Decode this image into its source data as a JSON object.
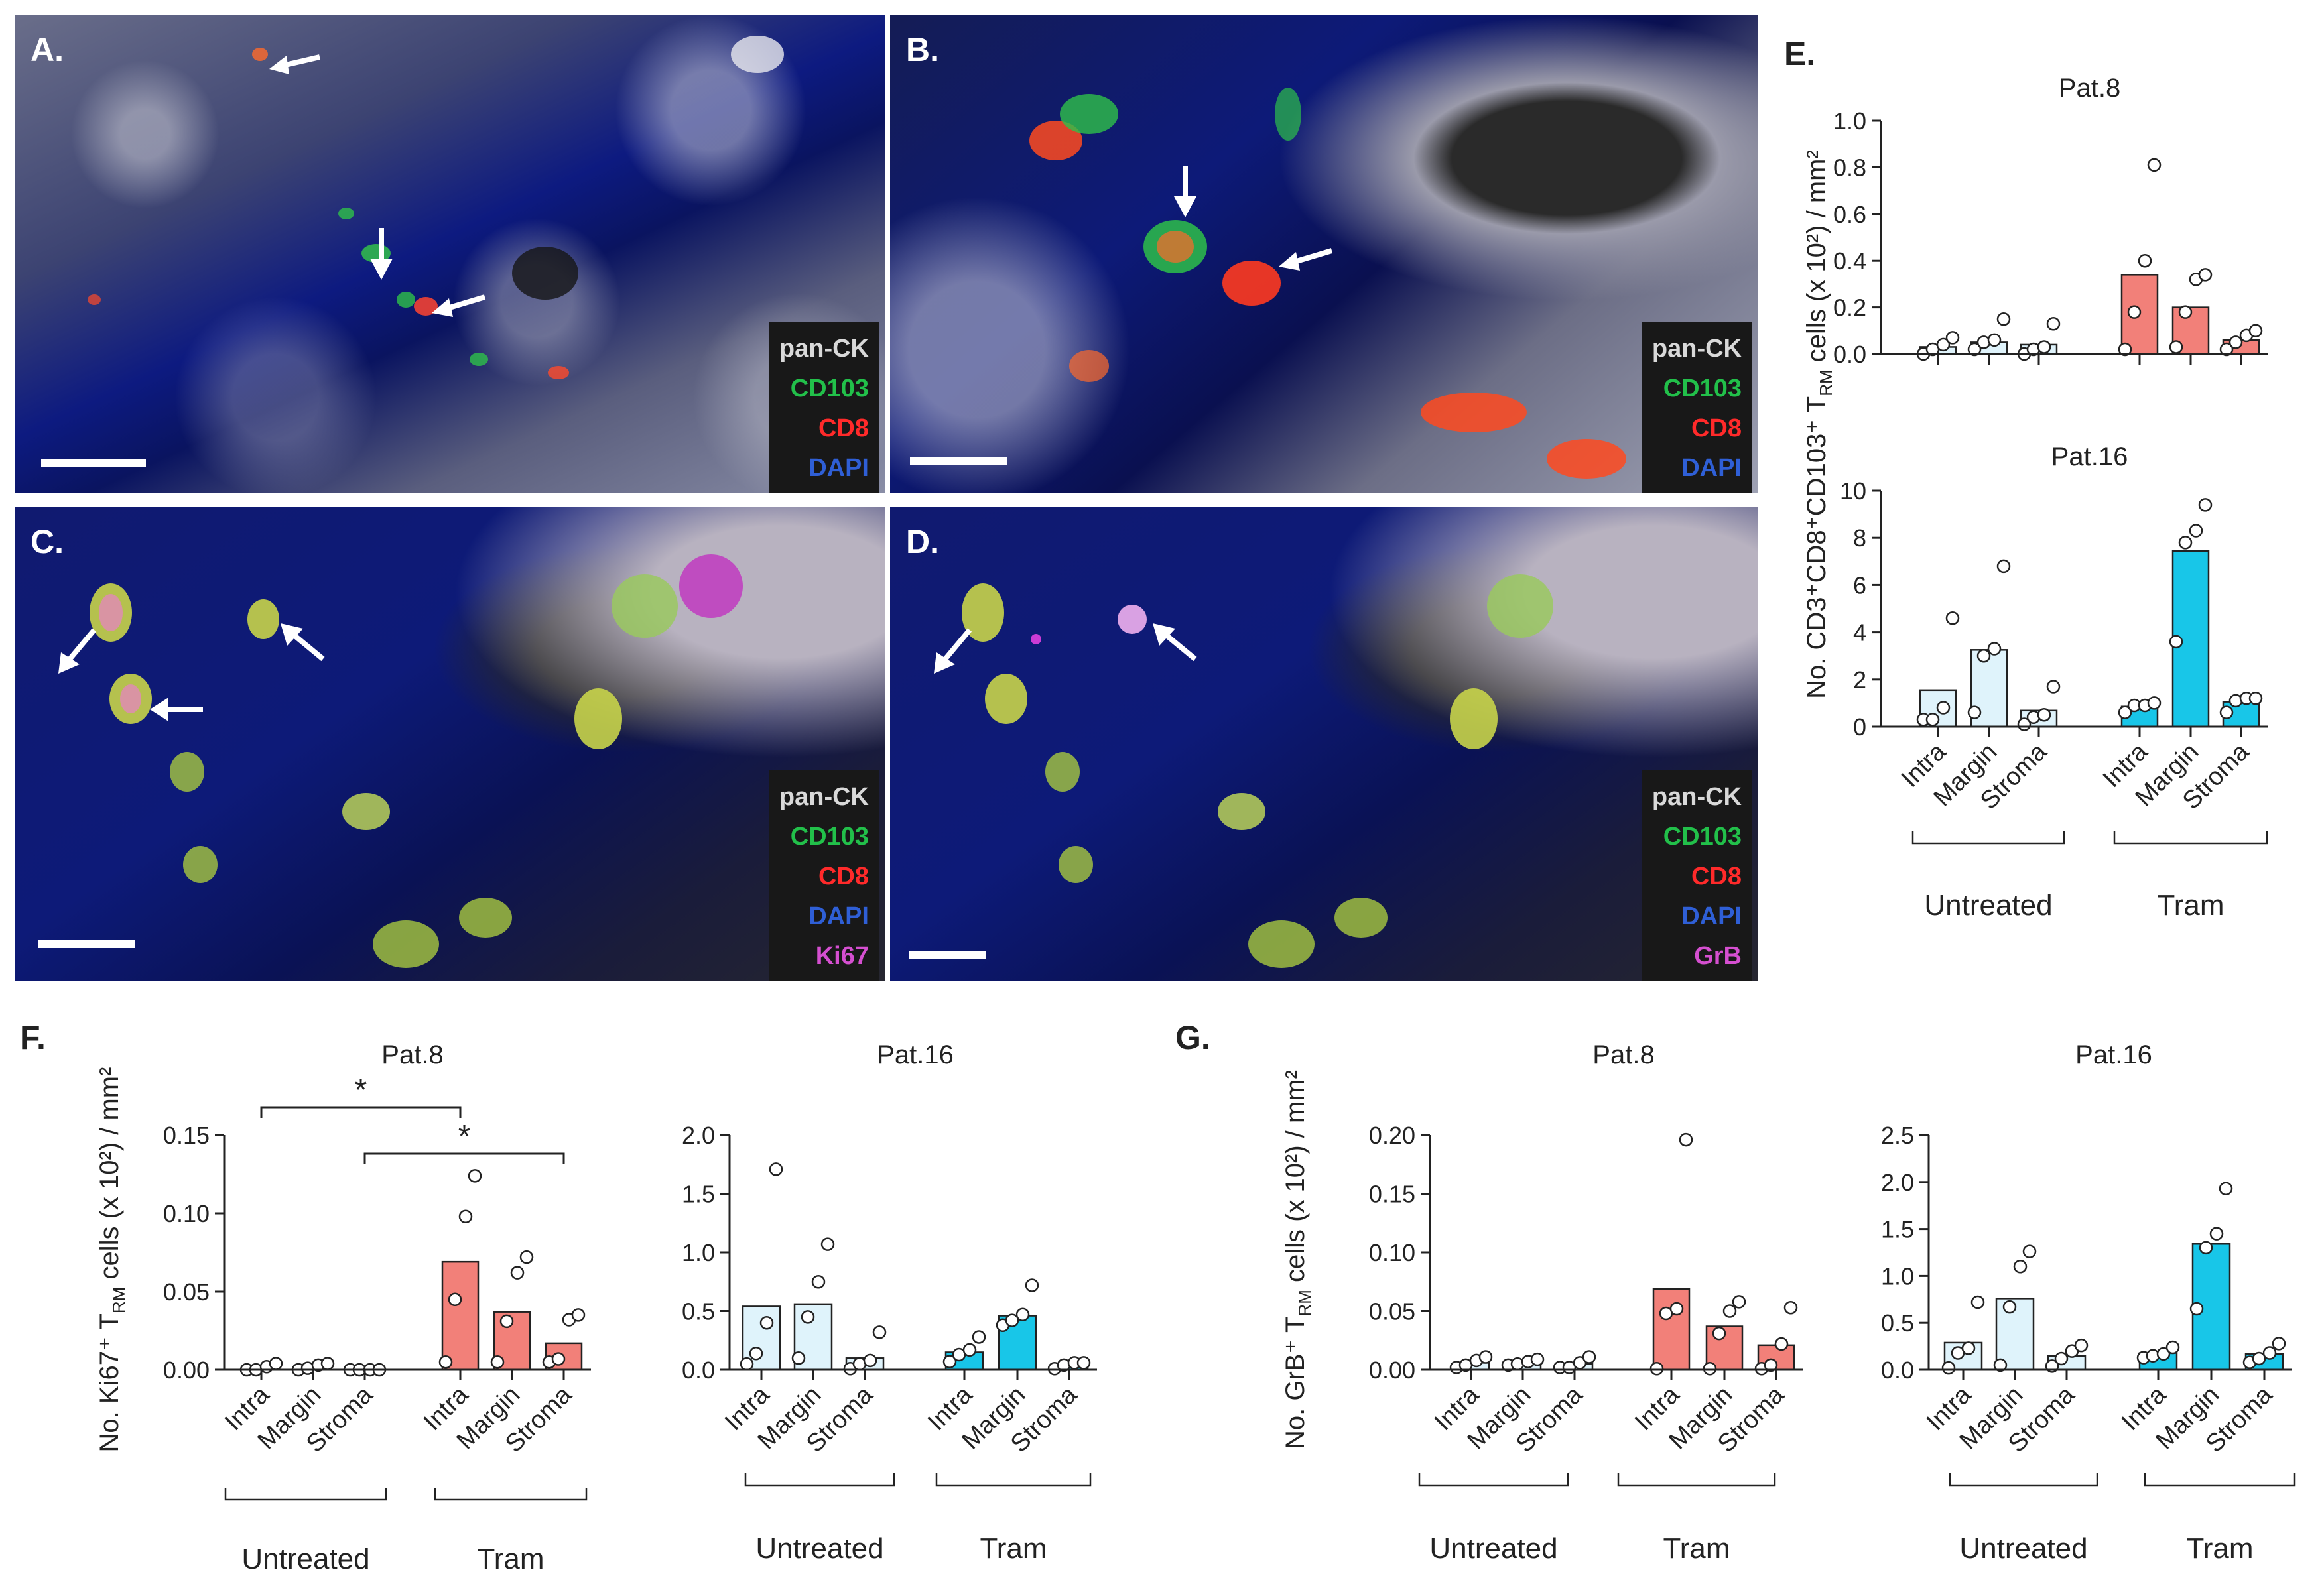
{
  "panels": {
    "A": {
      "letter": "A.",
      "legend": [
        "pan-CK",
        "CD103",
        "CD8",
        "DAPI"
      ]
    },
    "B": {
      "letter": "B.",
      "legend": [
        "pan-CK",
        "CD103",
        "CD8",
        "DAPI"
      ]
    },
    "C": {
      "letter": "C.",
      "legend": [
        "pan-CK",
        "CD103",
        "CD8",
        "DAPI",
        "Ki67"
      ]
    },
    "D": {
      "letter": "D.",
      "legend": [
        "pan-CK",
        "CD103",
        "CD8",
        "DAPI",
        "GrB"
      ]
    },
    "E": {
      "letter": "E."
    },
    "F": {
      "letter": "F."
    },
    "G": {
      "letter": "G."
    }
  },
  "legend_colors": {
    "pan-CK": "#d9d9d9",
    "CD103": "#22c04a",
    "CD8": "#ff2a2a",
    "DAPI": "#2f5fd6",
    "Ki67": "#d54fd0",
    "GrB": "#d54fd0"
  },
  "colors": {
    "untreated": "#dff3fb",
    "tram_pat8": "#f28079",
    "tram_pat16": "#18c6e8"
  },
  "group_labels": {
    "untreated": "Untreated",
    "tram": "Tram"
  },
  "significance": "*",
  "chart_data": [
    {
      "id": "E-pat8",
      "type": "bar",
      "title": "Pat.8",
      "ylabel": "No. CD3⁺CD8⁺CD103⁺ T_RM cells (x 10²) / mm²",
      "categories": [
        "Intra",
        "Margin",
        "Stroma",
        "Intra",
        "Margin",
        "Stroma"
      ],
      "groups": [
        "Untreated",
        "Untreated",
        "Untreated",
        "Tram",
        "Tram",
        "Tram"
      ],
      "values": [
        0.03,
        0.05,
        0.04,
        0.34,
        0.2,
        0.06
      ],
      "points": [
        [
          0.0,
          0.02,
          0.04,
          0.07
        ],
        [
          0.02,
          0.05,
          0.06,
          0.15
        ],
        [
          0.0,
          0.02,
          0.03,
          0.13
        ],
        [
          0.02,
          0.18,
          0.4,
          0.81
        ],
        [
          0.03,
          0.18,
          0.32,
          0.34
        ],
        [
          0.02,
          0.05,
          0.08,
          0.1
        ]
      ],
      "ylim": [
        0,
        1.0
      ],
      "yticks": [
        "0.0",
        "0.2",
        "0.4",
        "0.6",
        "0.8",
        "1.0"
      ]
    },
    {
      "id": "E-pat16",
      "type": "bar",
      "title": "Pat.16",
      "categories": [
        "Intra",
        "Margin",
        "Stroma",
        "Intra",
        "Margin",
        "Stroma"
      ],
      "groups": [
        "Untreated",
        "Untreated",
        "Untreated",
        "Tram",
        "Tram",
        "Tram"
      ],
      "values": [
        1.55,
        3.25,
        0.68,
        0.85,
        7.45,
        1.05
      ],
      "points": [
        [
          0.3,
          0.3,
          0.8,
          4.6
        ],
        [
          0.6,
          3.0,
          3.3,
          6.8
        ],
        [
          0.1,
          0.4,
          0.5,
          1.7
        ],
        [
          0.6,
          0.9,
          0.9,
          1.0
        ],
        [
          3.6,
          7.8,
          8.3,
          9.4
        ],
        [
          0.6,
          1.1,
          1.2,
          1.2
        ]
      ],
      "ylim": [
        0,
        10
      ],
      "yticks": [
        "0",
        "2",
        "4",
        "6",
        "8",
        "10"
      ]
    },
    {
      "id": "F-pat8",
      "type": "bar",
      "title": "Pat.8",
      "ylabel": "No. Ki67⁺ T_RM cells (x 10²) / mm²",
      "categories": [
        "Intra",
        "Margin",
        "Stroma",
        "Intra",
        "Margin",
        "Stroma"
      ],
      "groups": [
        "Untreated",
        "Untreated",
        "Untreated",
        "Tram",
        "Tram",
        "Tram"
      ],
      "values": [
        0.001,
        0.001,
        0.0,
        0.069,
        0.037,
        0.017
      ],
      "points": [
        [
          0.0,
          0.0,
          0.002,
          0.004
        ],
        [
          0.0,
          0.001,
          0.003,
          0.004
        ],
        [
          0.0,
          0.0,
          0.0,
          0.0
        ],
        [
          0.005,
          0.045,
          0.098,
          0.124
        ],
        [
          0.005,
          0.031,
          0.062,
          0.072
        ],
        [
          0.005,
          0.007,
          0.032,
          0.035
        ]
      ],
      "ylim": [
        0,
        0.15
      ],
      "yticks": [
        "0.00",
        "0.05",
        "0.10",
        "0.15"
      ],
      "significance": [
        {
          "from": 0,
          "to": 3,
          "label": "*"
        },
        {
          "from": 2,
          "to": 5,
          "label": "*"
        }
      ]
    },
    {
      "id": "F-pat16",
      "type": "bar",
      "title": "Pat.16",
      "categories": [
        "Intra",
        "Margin",
        "Stroma",
        "Intra",
        "Margin",
        "Stroma"
      ],
      "groups": [
        "Untreated",
        "Untreated",
        "Untreated",
        "Tram",
        "Tram",
        "Tram"
      ],
      "values": [
        0.54,
        0.56,
        0.1,
        0.15,
        0.46,
        0.04
      ],
      "points": [
        [
          0.05,
          0.14,
          0.4,
          1.71
        ],
        [
          0.1,
          0.45,
          0.75,
          1.07
        ],
        [
          0.01,
          0.05,
          0.08,
          0.32
        ],
        [
          0.07,
          0.13,
          0.17,
          0.28
        ],
        [
          0.38,
          0.42,
          0.47,
          0.72
        ],
        [
          0.01,
          0.04,
          0.06,
          0.06
        ]
      ],
      "ylim": [
        0,
        2.0
      ],
      "yticks": [
        "0.0",
        "0.5",
        "1.0",
        "1.5",
        "2.0"
      ]
    },
    {
      "id": "G-pat8",
      "type": "bar",
      "title": "Pat.8",
      "ylabel": "No. GrB⁺ T_RM cells (x 10²) / mm²",
      "categories": [
        "Intra",
        "Margin",
        "Stroma",
        "Intra",
        "Margin",
        "Stroma"
      ],
      "groups": [
        "Untreated",
        "Untreated",
        "Untreated",
        "Tram",
        "Tram",
        "Tram"
      ],
      "values": [
        0.006,
        0.006,
        0.005,
        0.069,
        0.037,
        0.021
      ],
      "points": [
        [
          0.002,
          0.004,
          0.008,
          0.011
        ],
        [
          0.004,
          0.005,
          0.007,
          0.009
        ],
        [
          0.002,
          0.002,
          0.006,
          0.011
        ],
        [
          0.001,
          0.048,
          0.052,
          0.196
        ],
        [
          0.001,
          0.031,
          0.05,
          0.058
        ],
        [
          0.001,
          0.004,
          0.022,
          0.053
        ]
      ],
      "ylim": [
        0,
        0.2
      ],
      "yticks": [
        "0.00",
        "0.05",
        "0.10",
        "0.15",
        "0.20"
      ]
    },
    {
      "id": "G-pat16",
      "type": "bar",
      "title": "Pat.16",
      "categories": [
        "Intra",
        "Margin",
        "Stroma",
        "Intra",
        "Margin",
        "Stroma"
      ],
      "groups": [
        "Untreated",
        "Untreated",
        "Untreated",
        "Tram",
        "Tram",
        "Tram"
      ],
      "values": [
        0.29,
        0.76,
        0.15,
        0.18,
        1.34,
        0.17
      ],
      "points": [
        [
          0.02,
          0.18,
          0.23,
          0.72
        ],
        [
          0.05,
          0.67,
          1.1,
          1.26
        ],
        [
          0.04,
          0.12,
          0.2,
          0.26
        ],
        [
          0.13,
          0.15,
          0.17,
          0.24
        ],
        [
          0.65,
          1.3,
          1.45,
          1.93
        ],
        [
          0.08,
          0.12,
          0.18,
          0.28
        ]
      ],
      "ylim": [
        0,
        2.5
      ],
      "yticks": [
        "0.0",
        "0.5",
        "1.0",
        "1.5",
        "2.0",
        "2.5"
      ]
    }
  ]
}
